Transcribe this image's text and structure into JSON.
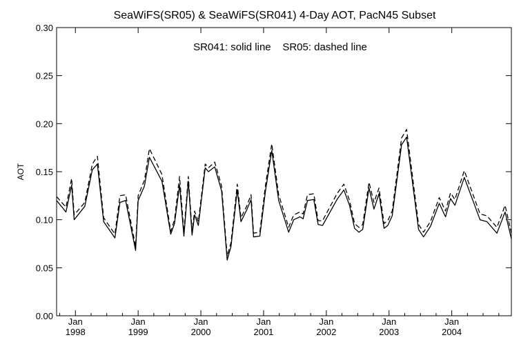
{
  "chart_data": {
    "type": "line",
    "title": "SeaWiFS(SR05) & SeaWiFS(SR041) 4-Day AOT, PacN45 Subset",
    "annotation": "SR041: solid line    SR05: dashed line",
    "ylabel": "AOT",
    "xlabel": "",
    "ylim": [
      0.0,
      0.3
    ],
    "xlim": [
      1997.7,
      2004.95
    ],
    "grid": false,
    "y_ticks": [
      "0.00",
      "0.05",
      "0.10",
      "0.15",
      "0.20",
      "0.25",
      "0.30"
    ],
    "x_ticks": [
      {
        "month": "Jan",
        "year": "1998",
        "x": 1998.0
      },
      {
        "month": "Jan",
        "year": "1999",
        "x": 1999.0
      },
      {
        "month": "Jan",
        "year": "2000",
        "x": 2000.0
      },
      {
        "month": "Jan",
        "year": "2001",
        "x": 2001.0
      },
      {
        "month": "Jan",
        "year": "2002",
        "x": 2002.0
      },
      {
        "month": "Jan",
        "year": "2003",
        "x": 2003.0
      },
      {
        "month": "Jan",
        "year": "2004",
        "x": 2004.0
      }
    ],
    "series": [
      {
        "name": "SR041",
        "style": "solid",
        "color": "#000000",
        "points": [
          [
            1997.7,
            0.12
          ],
          [
            1997.85,
            0.108
          ],
          [
            1997.94,
            0.136
          ],
          [
            1997.98,
            0.1
          ],
          [
            1998.15,
            0.114
          ],
          [
            1998.27,
            0.152
          ],
          [
            1998.35,
            0.158
          ],
          [
            1998.45,
            0.098
          ],
          [
            1998.63,
            0.081
          ],
          [
            1998.71,
            0.118
          ],
          [
            1998.8,
            0.12
          ],
          [
            1998.96,
            0.068
          ],
          [
            1999.0,
            0.12
          ],
          [
            1999.1,
            0.135
          ],
          [
            1999.18,
            0.165
          ],
          [
            1999.38,
            0.14
          ],
          [
            1999.52,
            0.085
          ],
          [
            1999.58,
            0.096
          ],
          [
            1999.66,
            0.136
          ],
          [
            1999.73,
            0.083
          ],
          [
            1999.8,
            0.14
          ],
          [
            1999.86,
            0.084
          ],
          [
            1999.9,
            0.105
          ],
          [
            1999.96,
            0.094
          ],
          [
            2000.07,
            0.154
          ],
          [
            2000.12,
            0.15
          ],
          [
            2000.22,
            0.155
          ],
          [
            2000.33,
            0.13
          ],
          [
            2000.42,
            0.058
          ],
          [
            2000.48,
            0.072
          ],
          [
            2000.58,
            0.131
          ],
          [
            2000.64,
            0.098
          ],
          [
            2000.73,
            0.11
          ],
          [
            2000.8,
            0.121
          ],
          [
            2000.84,
            0.082
          ],
          [
            2000.94,
            0.083
          ],
          [
            2001.03,
            0.13
          ],
          [
            2001.13,
            0.172
          ],
          [
            2001.24,
            0.12
          ],
          [
            2001.4,
            0.087
          ],
          [
            2001.48,
            0.1
          ],
          [
            2001.58,
            0.103
          ],
          [
            2001.63,
            0.101
          ],
          [
            2001.7,
            0.12
          ],
          [
            2001.8,
            0.121
          ],
          [
            2001.87,
            0.095
          ],
          [
            2001.94,
            0.094
          ],
          [
            2002.17,
            0.121
          ],
          [
            2002.28,
            0.131
          ],
          [
            2002.37,
            0.115
          ],
          [
            2002.45,
            0.091
          ],
          [
            2002.52,
            0.087
          ],
          [
            2002.58,
            0.09
          ],
          [
            2002.68,
            0.133
          ],
          [
            2002.76,
            0.111
          ],
          [
            2002.84,
            0.127
          ],
          [
            2002.92,
            0.091
          ],
          [
            2002.98,
            0.094
          ],
          [
            2003.05,
            0.104
          ],
          [
            2003.2,
            0.178
          ],
          [
            2003.28,
            0.186
          ],
          [
            2003.47,
            0.09
          ],
          [
            2003.55,
            0.082
          ],
          [
            2003.66,
            0.093
          ],
          [
            2003.8,
            0.117
          ],
          [
            2003.9,
            0.103
          ],
          [
            2003.98,
            0.122
          ],
          [
            2004.05,
            0.115
          ],
          [
            2004.2,
            0.144
          ],
          [
            2004.45,
            0.1
          ],
          [
            2004.56,
            0.098
          ],
          [
            2004.72,
            0.086
          ],
          [
            2004.85,
            0.108
          ],
          [
            2004.95,
            0.08
          ]
        ]
      },
      {
        "name": "SR05",
        "style": "dashed",
        "color": "#000000",
        "points": [
          [
            1997.7,
            0.124
          ],
          [
            1997.85,
            0.113
          ],
          [
            1997.94,
            0.143
          ],
          [
            1997.98,
            0.105
          ],
          [
            1998.15,
            0.118
          ],
          [
            1998.27,
            0.158
          ],
          [
            1998.35,
            0.166
          ],
          [
            1998.45,
            0.102
          ],
          [
            1998.63,
            0.085
          ],
          [
            1998.71,
            0.125
          ],
          [
            1998.8,
            0.126
          ],
          [
            1998.96,
            0.072
          ],
          [
            1999.0,
            0.125
          ],
          [
            1999.1,
            0.141
          ],
          [
            1999.18,
            0.174
          ],
          [
            1999.38,
            0.147
          ],
          [
            1999.52,
            0.088
          ],
          [
            1999.58,
            0.1
          ],
          [
            1999.66,
            0.145
          ],
          [
            1999.73,
            0.087
          ],
          [
            1999.8,
            0.145
          ],
          [
            1999.86,
            0.088
          ],
          [
            1999.9,
            0.109
          ],
          [
            1999.96,
            0.098
          ],
          [
            2000.07,
            0.158
          ],
          [
            2000.12,
            0.154
          ],
          [
            2000.22,
            0.16
          ],
          [
            2000.33,
            0.135
          ],
          [
            2000.42,
            0.062
          ],
          [
            2000.48,
            0.076
          ],
          [
            2000.58,
            0.137
          ],
          [
            2000.64,
            0.102
          ],
          [
            2000.73,
            0.114
          ],
          [
            2000.8,
            0.126
          ],
          [
            2000.84,
            0.086
          ],
          [
            2000.94,
            0.087
          ],
          [
            2001.03,
            0.136
          ],
          [
            2001.13,
            0.179
          ],
          [
            2001.24,
            0.126
          ],
          [
            2001.4,
            0.092
          ],
          [
            2001.48,
            0.105
          ],
          [
            2001.58,
            0.108
          ],
          [
            2001.63,
            0.106
          ],
          [
            2001.7,
            0.126
          ],
          [
            2001.8,
            0.127
          ],
          [
            2001.87,
            0.099
          ],
          [
            2001.94,
            0.099
          ],
          [
            2002.17,
            0.127
          ],
          [
            2002.28,
            0.137
          ],
          [
            2002.37,
            0.12
          ],
          [
            2002.45,
            0.096
          ],
          [
            2002.52,
            0.092
          ],
          [
            2002.58,
            0.095
          ],
          [
            2002.68,
            0.139
          ],
          [
            2002.76,
            0.118
          ],
          [
            2002.84,
            0.133
          ],
          [
            2002.92,
            0.096
          ],
          [
            2002.98,
            0.099
          ],
          [
            2003.05,
            0.109
          ],
          [
            2003.2,
            0.185
          ],
          [
            2003.28,
            0.194
          ],
          [
            2003.47,
            0.095
          ],
          [
            2003.55,
            0.087
          ],
          [
            2003.66,
            0.098
          ],
          [
            2003.8,
            0.123
          ],
          [
            2003.9,
            0.109
          ],
          [
            2003.98,
            0.128
          ],
          [
            2004.05,
            0.121
          ],
          [
            2004.2,
            0.151
          ],
          [
            2004.45,
            0.106
          ],
          [
            2004.56,
            0.104
          ],
          [
            2004.72,
            0.092
          ],
          [
            2004.85,
            0.115
          ],
          [
            2004.95,
            0.086
          ]
        ]
      }
    ]
  }
}
